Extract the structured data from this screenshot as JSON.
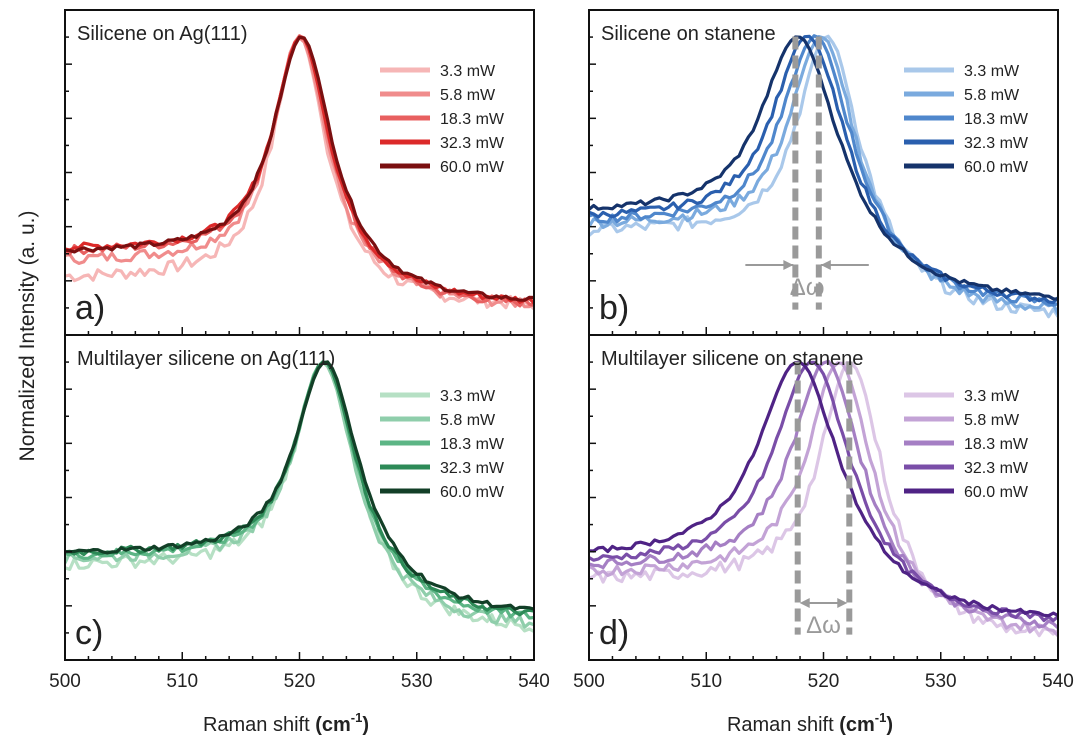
{
  "figure": {
    "ylabel": "Normalized Intensity (a. u.)",
    "xlabel_main": "Raman shift ",
    "xlabel_unit_open": "(cm",
    "xlabel_unit_sup": "-1",
    "xlabel_unit_close": ")"
  },
  "chart_data": [
    {
      "type": "line",
      "panel_label": "a)",
      "title": "Silicene on Ag(111)",
      "xlim": [
        500,
        540
      ],
      "ylim": [
        0,
        1.05
      ],
      "xticks": [
        500,
        510,
        520,
        530,
        540
      ],
      "legend_position": "top-right",
      "series": [
        {
          "name": "3.3 mW",
          "color": "#f6b6b6",
          "x0": 520.0,
          "gamma": 2.8,
          "baseline_left": 0.16,
          "baseline_right": 0.06
        },
        {
          "name": "5.8 mW",
          "color": "#f08c8c",
          "x0": 520.0,
          "gamma": 2.9,
          "baseline_left": 0.22,
          "baseline_right": 0.06
        },
        {
          "name": "18.3 mW",
          "color": "#e86060",
          "x0": 520.1,
          "gamma": 3.0,
          "baseline_left": 0.25,
          "baseline_right": 0.06
        },
        {
          "name": "32.3 mW",
          "color": "#dc2a2a",
          "x0": 520.1,
          "gamma": 3.0,
          "baseline_left": 0.26,
          "baseline_right": 0.07
        },
        {
          "name": "60.0 mW",
          "color": "#7a0f10",
          "x0": 520.2,
          "gamma": 3.1,
          "baseline_left": 0.25,
          "baseline_right": 0.07
        }
      ]
    },
    {
      "type": "line",
      "panel_label": "b)",
      "title": "Silicene on stanene",
      "annotation": "Δω",
      "delta_lines_x": [
        517.6,
        519.6
      ],
      "xlim": [
        500,
        540
      ],
      "ylim": [
        0,
        1.05
      ],
      "xticks": [
        500,
        510,
        520,
        530,
        540
      ],
      "legend_position": "top-right",
      "series": [
        {
          "name": "3.3 mW",
          "color": "#a9c8ea",
          "x0": 520.3,
          "gamma": 3.4,
          "baseline_left": 0.32,
          "baseline_right": 0.02
        },
        {
          "name": "5.8 mW",
          "color": "#7aaade",
          "x0": 519.8,
          "gamma": 3.6,
          "baseline_left": 0.34,
          "baseline_right": 0.03
        },
        {
          "name": "18.3 mW",
          "color": "#4f87cc",
          "x0": 519.3,
          "gamma": 3.8,
          "baseline_left": 0.35,
          "baseline_right": 0.05
        },
        {
          "name": "32.3 mW",
          "color": "#2a5fae",
          "x0": 518.6,
          "gamma": 4.0,
          "baseline_left": 0.36,
          "baseline_right": 0.06
        },
        {
          "name": "60.0 mW",
          "color": "#15336b",
          "x0": 517.8,
          "gamma": 4.2,
          "baseline_left": 0.38,
          "baseline_right": 0.07
        }
      ]
    },
    {
      "type": "line",
      "panel_label": "c)",
      "title": "Multilayer silicene on Ag(111)",
      "xlim": [
        500,
        540
      ],
      "ylim": [
        0,
        1.05
      ],
      "xticks": [
        500,
        510,
        520,
        530,
        540
      ],
      "legend_position": "top-right",
      "series": [
        {
          "name": "3.3 mW",
          "color": "#b6e0c4",
          "x0": 522.0,
          "gamma": 3.2,
          "baseline_left": 0.29,
          "baseline_right": 0.06
        },
        {
          "name": "5.8 mW",
          "color": "#8fceab",
          "x0": 522.0,
          "gamma": 3.2,
          "baseline_left": 0.31,
          "baseline_right": 0.07
        },
        {
          "name": "18.3 mW",
          "color": "#5cb585",
          "x0": 522.1,
          "gamma": 3.3,
          "baseline_left": 0.32,
          "baseline_right": 0.09
        },
        {
          "name": "32.3 mW",
          "color": "#2d8a57",
          "x0": 522.1,
          "gamma": 3.3,
          "baseline_left": 0.33,
          "baseline_right": 0.1
        },
        {
          "name": "60.0 mW",
          "color": "#123f27",
          "x0": 522.2,
          "gamma": 3.4,
          "baseline_left": 0.33,
          "baseline_right": 0.11
        }
      ]
    },
    {
      "type": "line",
      "panel_label": "d)",
      "title": "Multilayer silicene on stanene",
      "annotation": "Δω",
      "delta_lines_x": [
        517.8,
        522.2
      ],
      "xlim": [
        500,
        540
      ],
      "ylim": [
        0,
        1.05
      ],
      "xticks": [
        500,
        510,
        520,
        530,
        540
      ],
      "legend_position": "top-right",
      "series": [
        {
          "name": "3.3 mW",
          "color": "#dcc6e6",
          "x0": 522.3,
          "gamma": 3.3,
          "baseline_left": 0.24,
          "baseline_right": 0.02
        },
        {
          "name": "5.8 mW",
          "color": "#c3a3d6",
          "x0": 521.3,
          "gamma": 3.5,
          "baseline_left": 0.26,
          "baseline_right": 0.04
        },
        {
          "name": "18.3 mW",
          "color": "#a57fc4",
          "x0": 520.2,
          "gamma": 3.8,
          "baseline_left": 0.28,
          "baseline_right": 0.06
        },
        {
          "name": "32.3 mW",
          "color": "#7a4ea8",
          "x0": 519.0,
          "gamma": 4.1,
          "baseline_left": 0.29,
          "baseline_right": 0.08
        },
        {
          "name": "60.0 mW",
          "color": "#4f2385",
          "x0": 517.8,
          "gamma": 4.4,
          "baseline_left": 0.31,
          "baseline_right": 0.09
        }
      ]
    }
  ]
}
